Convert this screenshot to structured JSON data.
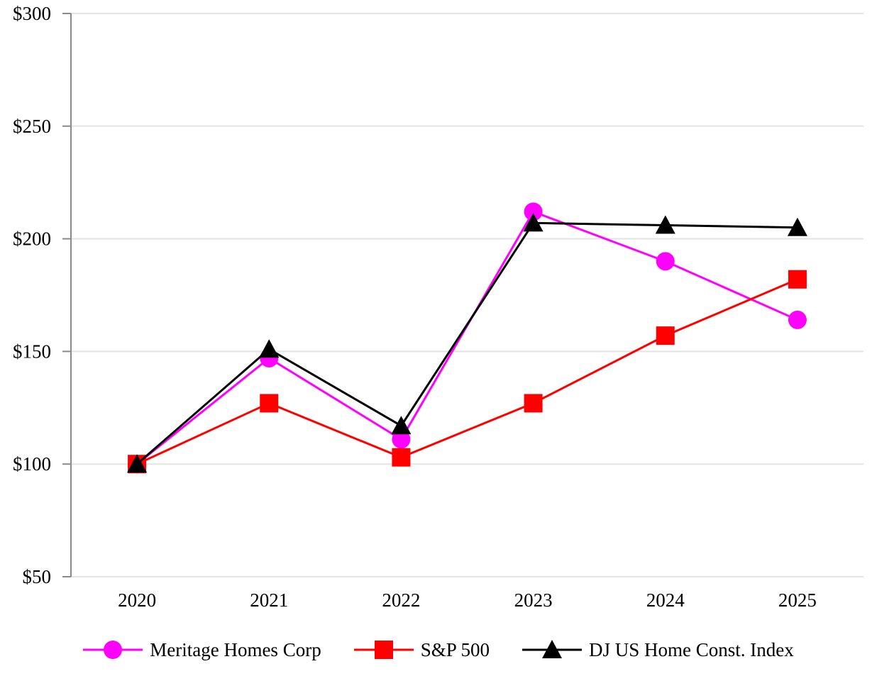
{
  "chart_data": {
    "type": "line",
    "title": "",
    "xlabel": "",
    "ylabel": "",
    "categories": [
      "2020",
      "2021",
      "2022",
      "2023",
      "2024",
      "2025"
    ],
    "series": [
      {
        "name": "Meritage Homes Corp",
        "color": "#FF00FF",
        "marker": "circle",
        "values": [
          100,
          147,
          111,
          212,
          190,
          164
        ]
      },
      {
        "name": "S&P 500",
        "color": "#FF0000",
        "marker": "square",
        "values": [
          100,
          127,
          103,
          127,
          157,
          182
        ]
      },
      {
        "name": "DJ US Home Const. Index",
        "color": "#000000",
        "marker": "triangle",
        "values": [
          100,
          151,
          117,
          207,
          206,
          205
        ]
      }
    ],
    "ylim": [
      50,
      300
    ],
    "yticks": [
      50,
      100,
      150,
      200,
      250,
      300
    ],
    "ytick_labels": [
      "$50",
      "$100",
      "$150",
      "$200",
      "$250",
      "$300"
    ],
    "grid": "horizontal",
    "legend_position": "bottom"
  },
  "style": {
    "background": "#FFFFFF",
    "gridline_color": "#E3E3E3",
    "axis_color": "#8A8A8A",
    "text_color": "#000000",
    "line_width": 3
  }
}
